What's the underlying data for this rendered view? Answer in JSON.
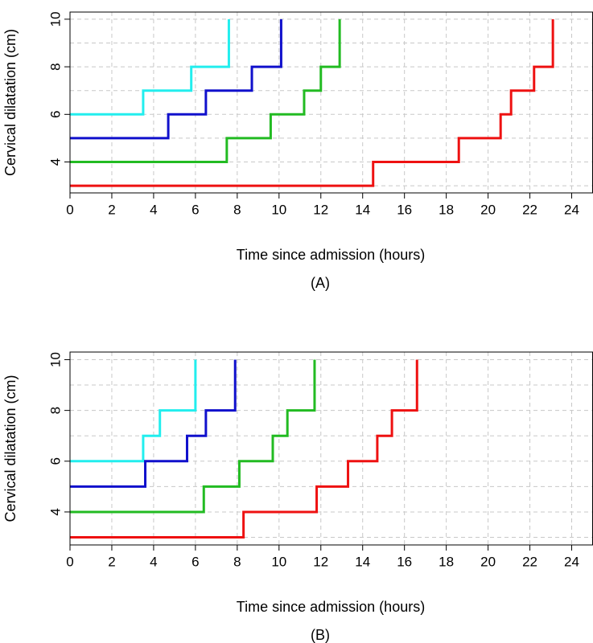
{
  "chart_data": [
    {
      "type": "step",
      "caption": "(A)",
      "xlabel": "Time since admission (hours)",
      "ylabel": "Cervical dilatation (cm)",
      "xlim": [
        0,
        25
      ],
      "ylim": [
        2.7,
        10.3
      ],
      "xticks": [
        0,
        2,
        4,
        6,
        8,
        10,
        12,
        14,
        16,
        18,
        20,
        22,
        24
      ],
      "yticks": [
        4,
        6,
        8,
        10
      ],
      "ygrid": [
        3,
        4,
        5,
        6,
        7,
        8,
        9,
        10
      ],
      "grid": true,
      "series": [
        {
          "color": "#22eeee",
          "x": [
            0,
            3.5,
            5.8,
            7.6
          ],
          "values": [
            6,
            7,
            8,
            10
          ]
        },
        {
          "color": "#1010cc",
          "x": [
            0,
            4.7,
            6.5,
            8.7,
            10.1
          ],
          "values": [
            5,
            6,
            7,
            8,
            10
          ]
        },
        {
          "color": "#22bb22",
          "x": [
            0,
            7.5,
            9.6,
            11.2,
            12,
            12.9
          ],
          "values": [
            4,
            5,
            6,
            7,
            8,
            10
          ]
        },
        {
          "color": "#ee1111",
          "x": [
            0,
            14.5,
            18.6,
            20.6,
            21.1,
            22.2,
            23.1
          ],
          "values": [
            3,
            4,
            5,
            6,
            7,
            8,
            10
          ]
        }
      ]
    },
    {
      "type": "step",
      "caption": "(B)",
      "xlabel": "Time since admission (hours)",
      "ylabel": "Cervical dilatation (cm)",
      "xlim": [
        0,
        25
      ],
      "ylim": [
        2.7,
        10.3
      ],
      "xticks": [
        0,
        2,
        4,
        6,
        8,
        10,
        12,
        14,
        16,
        18,
        20,
        22,
        24
      ],
      "yticks": [
        4,
        6,
        8,
        10
      ],
      "ygrid": [
        3,
        4,
        5,
        6,
        7,
        8,
        9,
        10
      ],
      "grid": true,
      "series": [
        {
          "color": "#22eeee",
          "x": [
            0,
            3.5,
            4.3,
            6
          ],
          "values": [
            6,
            7,
            8,
            10
          ]
        },
        {
          "color": "#1010cc",
          "x": [
            0,
            3.6,
            5.6,
            6.5,
            7.9
          ],
          "values": [
            5,
            6,
            7,
            8,
            10
          ]
        },
        {
          "color": "#22bb22",
          "x": [
            0,
            6.4,
            8.1,
            9.7,
            10.4,
            11.7
          ],
          "values": [
            4,
            5,
            6,
            7,
            8,
            10
          ]
        },
        {
          "color": "#ee1111",
          "x": [
            0,
            8.3,
            11.8,
            13.3,
            14.7,
            15.4,
            16.6
          ],
          "values": [
            3,
            4,
            5,
            6,
            7,
            8,
            10
          ]
        }
      ]
    }
  ]
}
